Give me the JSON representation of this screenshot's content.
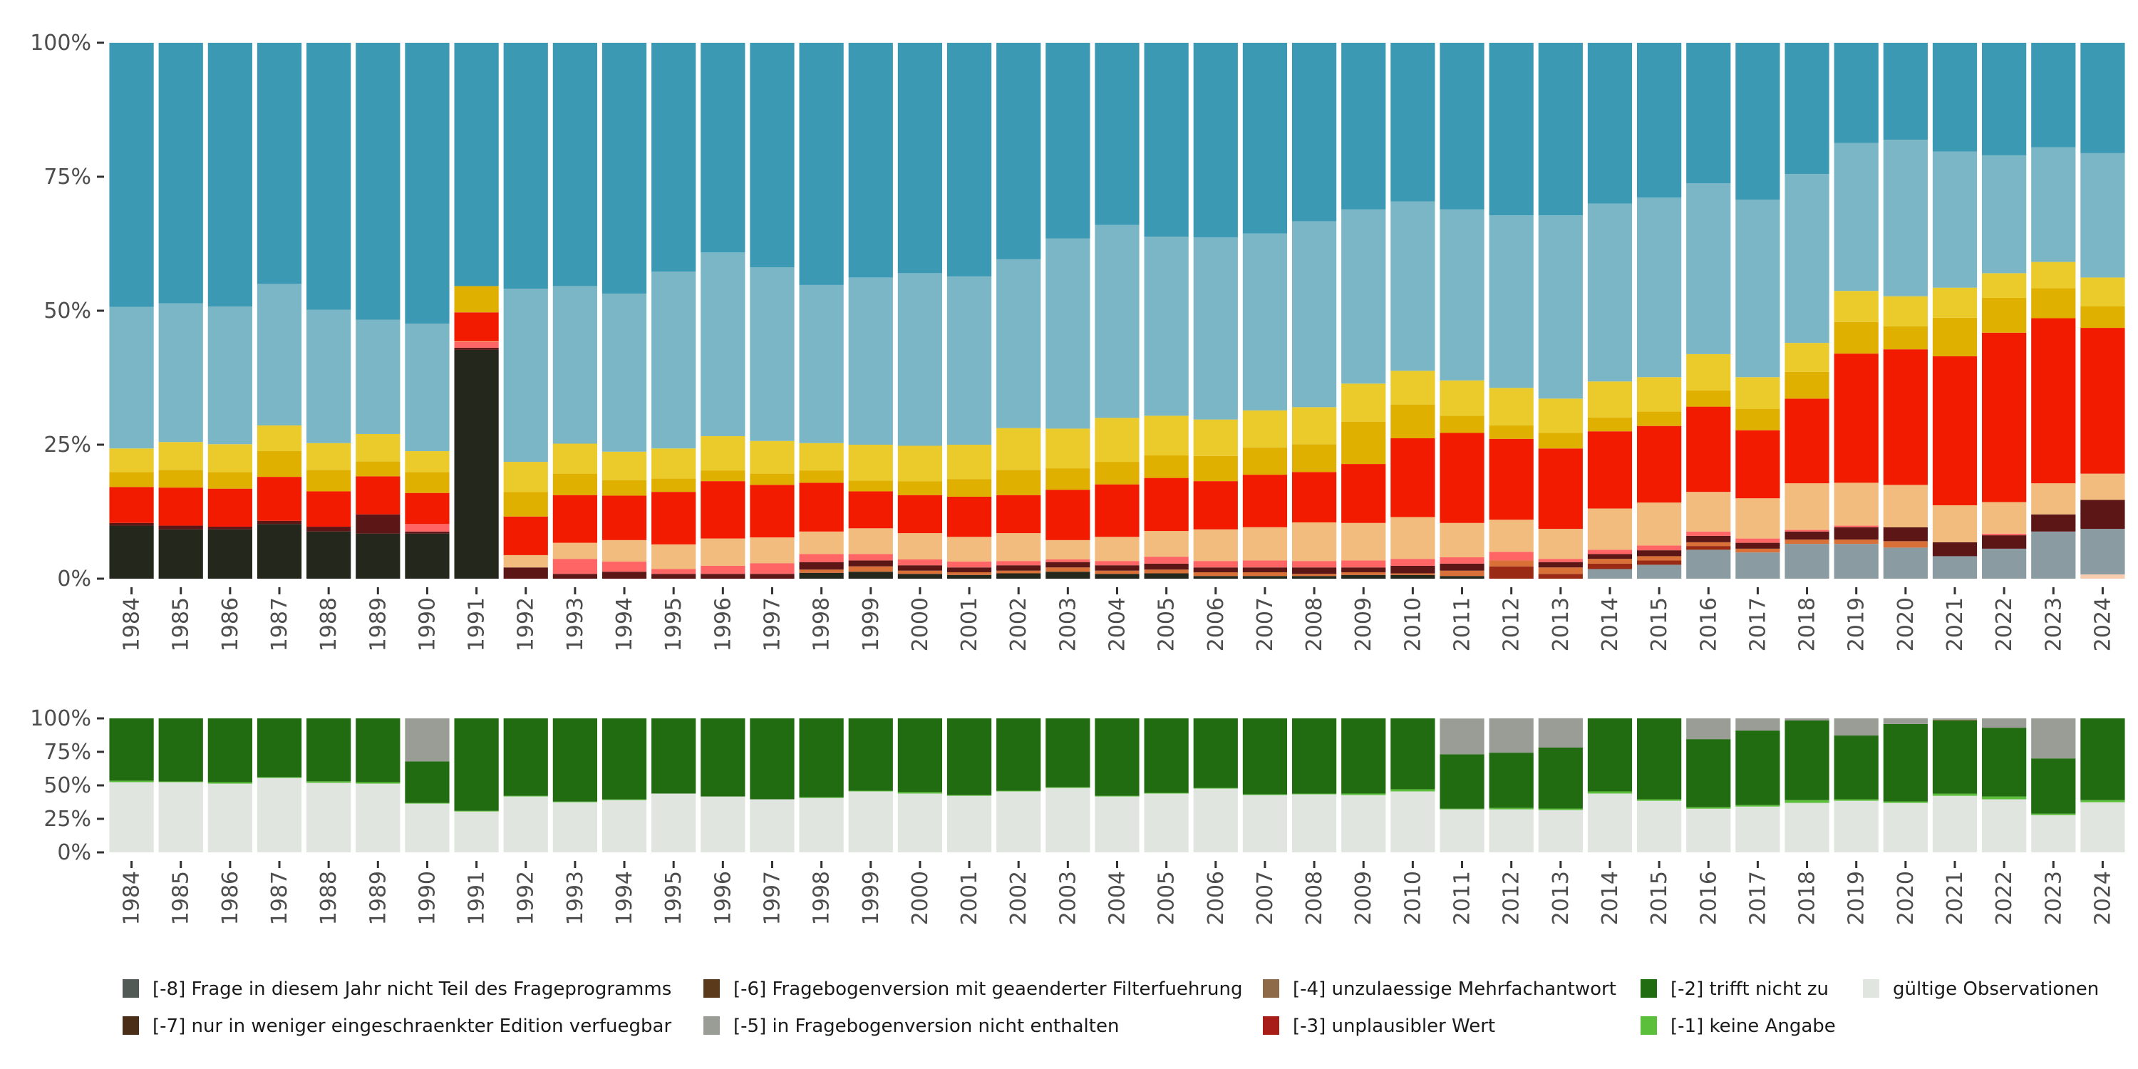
{
  "chart_data": [
    {
      "type": "bar",
      "stacked": true,
      "title": "",
      "xlabel": "",
      "ylabel": "",
      "ylim": [
        0,
        100
      ],
      "y_ticks": [
        "0%",
        "25%",
        "50%",
        "75%",
        "100%"
      ],
      "categories": [
        "1984",
        "1985",
        "1986",
        "1987",
        "1988",
        "1989",
        "1990",
        "1991",
        "1992",
        "1993",
        "1994",
        "1995",
        "1996",
        "1997",
        "1998",
        "1999",
        "2000",
        "2001",
        "2002",
        "2003",
        "2004",
        "2005",
        "2006",
        "2007",
        "2008",
        "2009",
        "2010",
        "2011",
        "2012",
        "2013",
        "2014",
        "2015",
        "2016",
        "2017",
        "2018",
        "2019",
        "2020",
        "2021",
        "2022",
        "2023",
        "2024"
      ],
      "series_colors": [
        "#f6cdb0",
        "#8a9ca2",
        "#24271b",
        "#9a2a14",
        "#d87038",
        "#5c1616",
        "#ff6565",
        "#f2bc7e",
        "#f21b00",
        "#e0b000",
        "#ebcb2b",
        "#7ab6c6",
        "#3c99b4"
      ],
      "values_by_year": [
        [
          0,
          0,
          9.9,
          0,
          0,
          0.5,
          0,
          0,
          6.7,
          2.8,
          4.4,
          26.4,
          49.3
        ],
        [
          0,
          0,
          9.2,
          0,
          0,
          0.7,
          0,
          0,
          7.1,
          3.3,
          5.2,
          25.9,
          48.6
        ],
        [
          0,
          0,
          9.2,
          0,
          0,
          0.5,
          0,
          0,
          7.1,
          3.1,
          5.2,
          25.7,
          49.2
        ],
        [
          0,
          0,
          10.2,
          0,
          0,
          0.6,
          0,
          0,
          8.2,
          4.8,
          4.8,
          26.4,
          45.0
        ],
        [
          0,
          0,
          8.8,
          0,
          0,
          0.9,
          0,
          0,
          6.6,
          4.0,
          5.0,
          24.9,
          49.8
        ],
        [
          0,
          0,
          8.4,
          0,
          0,
          3.6,
          0,
          0,
          7.1,
          2.8,
          5.1,
          21.3,
          51.7
        ],
        [
          0,
          0,
          8.4,
          0,
          0,
          0.4,
          1.4,
          0,
          5.8,
          3.9,
          3.9,
          23.8,
          52.4
        ],
        [
          0,
          0,
          42.7,
          0,
          0,
          0.4,
          1.1,
          0.1,
          5.4,
          4.9,
          0,
          0,
          45.4
        ],
        [
          0,
          0,
          0,
          0,
          0,
          2.1,
          0,
          2.3,
          7.2,
          4.6,
          5.6,
          32.3,
          45.9
        ],
        [
          0,
          0,
          0,
          0,
          0,
          0.9,
          2.8,
          3.0,
          8.9,
          4.0,
          5.6,
          29.4,
          45.4
        ],
        [
          0,
          0,
          0,
          0,
          0,
          1.3,
          1.9,
          4.0,
          8.3,
          2.9,
          5.3,
          29.5,
          46.8
        ],
        [
          0,
          0,
          0,
          0,
          0,
          0.9,
          0.9,
          4.6,
          9.8,
          2.5,
          5.6,
          33.0,
          42.7
        ],
        [
          0,
          0,
          0,
          0,
          0,
          0.9,
          1.5,
          5.1,
          10.7,
          2.0,
          6.4,
          34.3,
          39.1
        ],
        [
          0,
          0,
          0,
          0,
          0,
          0.9,
          2.0,
          4.8,
          9.8,
          2.1,
          6.1,
          32.4,
          41.9
        ],
        [
          0,
          0,
          1.1,
          0,
          0.6,
          1.4,
          1.5,
          4.2,
          9.1,
          2.3,
          5.1,
          29.5,
          45.2
        ],
        [
          0,
          0,
          1.3,
          0,
          1.0,
          1.1,
          1.2,
          4.8,
          6.9,
          2.0,
          6.7,
          31.2,
          43.8
        ],
        [
          0,
          0,
          0.9,
          0,
          0.6,
          1.0,
          1.1,
          4.9,
          7.1,
          2.6,
          6.6,
          32.2,
          43.0
        ],
        [
          0,
          0,
          0.7,
          0,
          0.5,
          0.9,
          1.1,
          4.6,
          7.5,
          3.3,
          6.4,
          31.4,
          43.6
        ],
        [
          0,
          0,
          1.0,
          0,
          0.5,
          1.0,
          0.8,
          5.2,
          7.1,
          4.7,
          7.8,
          31.5,
          40.4
        ],
        [
          0,
          0,
          1.3,
          0,
          0.8,
          1.0,
          0.5,
          3.6,
          9.4,
          4.0,
          7.4,
          35.5,
          36.5
        ],
        [
          0,
          0,
          0.9,
          0,
          0.6,
          1.0,
          0.8,
          4.5,
          9.8,
          4.2,
          8.2,
          36.0,
          34.0
        ],
        [
          0,
          0,
          1.0,
          0,
          0.7,
          1.1,
          1.3,
          4.8,
          9.9,
          4.2,
          7.4,
          33.4,
          36.2
        ],
        [
          0,
          0,
          0.5,
          0,
          0.7,
          0.9,
          1.2,
          5.9,
          9.0,
          4.7,
          6.8,
          34.0,
          36.3
        ],
        [
          0,
          0,
          0.5,
          0,
          0.7,
          0.9,
          1.3,
          6.2,
          9.8,
          5.1,
          6.9,
          33.0,
          35.6
        ],
        [
          0,
          0,
          0.5,
          0,
          0.4,
          1.2,
          1.2,
          7.2,
          9.4,
          5.2,
          6.9,
          34.7,
          33.3
        ],
        [
          0,
          0,
          0.7,
          0,
          0.5,
          0.9,
          1.3,
          7.0,
          11.0,
          7.9,
          7.1,
          32.5,
          31.1
        ],
        [
          0,
          0,
          0.7,
          0,
          0.3,
          1.4,
          1.3,
          7.8,
          14.7,
          6.3,
          6.3,
          31.6,
          29.6
        ],
        [
          0,
          0,
          0.5,
          0,
          1.0,
          1.3,
          1.2,
          6.4,
          16.8,
          3.2,
          6.6,
          31.9,
          31.1
        ],
        [
          0,
          0,
          0,
          2.3,
          1.1,
          0,
          1.6,
          6.0,
          15.1,
          2.5,
          7.0,
          32.2,
          32.2
        ],
        [
          0,
          0,
          0,
          0.9,
          1.2,
          1.0,
          0.6,
          5.6,
          15.0,
          2.9,
          6.4,
          34.2,
          32.2
        ],
        [
          0,
          1.8,
          0,
          1.0,
          0.9,
          0.9,
          0.8,
          7.7,
          14.4,
          2.6,
          6.7,
          33.2,
          30.0
        ],
        [
          0,
          2.6,
          0,
          0.8,
          0.8,
          1.1,
          0.9,
          8.0,
          14.3,
          2.7,
          6.4,
          33.5,
          28.9
        ],
        [
          0,
          5.4,
          0,
          0.7,
          0.7,
          1.2,
          0.8,
          7.4,
          15.9,
          3.0,
          6.8,
          31.9,
          26.2
        ],
        [
          0,
          4.9,
          0,
          0,
          0.7,
          1.1,
          0.8,
          7.5,
          12.7,
          4.0,
          5.9,
          33.1,
          29.3
        ],
        [
          0,
          6.5,
          0,
          0,
          0.8,
          1.5,
          0.3,
          8.7,
          15.8,
          5.0,
          5.4,
          31.5,
          24.5
        ],
        [
          0,
          6.5,
          0,
          0,
          0.8,
          2.3,
          0.3,
          8.0,
          24.1,
          5.9,
          5.8,
          27.6,
          18.7
        ],
        [
          0,
          5.8,
          0,
          0,
          1.2,
          2.6,
          0,
          7.9,
          25.3,
          4.3,
          5.6,
          29.2,
          18.1
        ],
        [
          0,
          4.2,
          0,
          0,
          0,
          2.6,
          0,
          6.9,
          27.8,
          7.2,
          5.6,
          25.4,
          20.3
        ],
        [
          0,
          5.6,
          0,
          0,
          0,
          2.5,
          0.3,
          5.9,
          31.6,
          6.5,
          4.6,
          22.0,
          21.0
        ],
        [
          0,
          8.8,
          0,
          0,
          0,
          3.2,
          0,
          5.8,
          30.8,
          5.6,
          4.9,
          21.4,
          19.5
        ],
        [
          0.8,
          8.5,
          0,
          0,
          0,
          5.4,
          0,
          4.9,
          27.2,
          4.0,
          5.4,
          23.2,
          20.6
        ]
      ]
    },
    {
      "type": "bar",
      "stacked": true,
      "ylim": [
        0,
        100
      ],
      "y_ticks": [
        "0%",
        "25%",
        "50%",
        "75%",
        "100%"
      ],
      "categories": [
        "1984",
        "1985",
        "1986",
        "1987",
        "1988",
        "1989",
        "1990",
        "1991",
        "1992",
        "1993",
        "1994",
        "1995",
        "1996",
        "1997",
        "1998",
        "1999",
        "2000",
        "2001",
        "2002",
        "2003",
        "2004",
        "2005",
        "2006",
        "2007",
        "2008",
        "2009",
        "2010",
        "2011",
        "2012",
        "2013",
        "2014",
        "2015",
        "2016",
        "2017",
        "2018",
        "2019",
        "2020",
        "2021",
        "2022",
        "2023",
        "2024"
      ],
      "series": [
        {
          "name": "gültige Observationen",
          "color": "#e1e5e0",
          "values": [
            52.4,
            52.4,
            51.3,
            55.6,
            51.9,
            51.3,
            36.4,
            30.5,
            41.7,
            37.4,
            39.0,
            43.9,
            41.7,
            39.6,
            40.6,
            45.5,
            43.9,
            42.2,
            45.5,
            48.1,
            41.7,
            43.9,
            47.6,
            42.8,
            43.3,
            42.8,
            45.5,
            32.1,
            32.1,
            31.6,
            43.9,
            38.5,
            32.6,
            34.2,
            36.9,
            38.5,
            36.9,
            42.2,
            39.6,
            27.8,
            37.4
          ]
        },
        {
          "name": "[-1] keine Angabe",
          "color": "#5cbf3c",
          "values": [
            1.1,
            0.5,
            1.1,
            0.5,
            1.1,
            1.1,
            0.5,
            0.5,
            0.5,
            0.5,
            0.5,
            0,
            0,
            0,
            0.5,
            0.5,
            1.1,
            0.5,
            0.5,
            0.5,
            0.5,
            0.5,
            0.5,
            0.5,
            0.5,
            1.1,
            1.6,
            0.5,
            1.1,
            1.1,
            1.6,
            1.1,
            1.1,
            1.1,
            2.1,
            1.1,
            1.1,
            1.6,
            2.1,
            1.1,
            1.6
          ]
        },
        {
          "name": "[-2] trifft nicht zu",
          "color": "#216b10",
          "values": [
            46.5,
            47.1,
            47.6,
            43.9,
            47.0,
            47.6,
            31.0,
            69.0,
            57.8,
            62.1,
            60.5,
            56.1,
            58.3,
            60.4,
            58.9,
            54.0,
            55.0,
            57.3,
            54.0,
            51.4,
            57.8,
            55.6,
            51.9,
            56.7,
            56.2,
            56.1,
            52.9,
            40.6,
            41.2,
            45.5,
            54.5,
            60.4,
            50.8,
            55.6,
            59.4,
            47.6,
            57.8,
            54.7,
            51.3,
            41.2,
            61.0
          ]
        },
        {
          "name": "[-4] unzulaessige Mehrfachantwort",
          "color": "#8f6a48",
          "values": [
            0,
            0,
            0,
            0,
            0,
            0,
            0,
            0,
            0,
            0,
            0,
            0,
            0,
            0,
            0,
            0,
            0,
            0,
            0,
            0,
            0,
            0,
            0,
            0,
            0,
            0,
            0,
            0,
            0,
            0,
            0,
            0,
            0,
            0,
            0,
            0,
            0,
            0.5,
            0,
            0,
            0
          ]
        },
        {
          "name": "[-5] in Fragebogenversion nicht enthalten",
          "color": "#9a9d96",
          "values": [
            0,
            0,
            0,
            0,
            0,
            0,
            32.1,
            0,
            0,
            0,
            0,
            0,
            0,
            0,
            0,
            0,
            0,
            0,
            0,
            0,
            0,
            0,
            0,
            0,
            0,
            0,
            0,
            26.7,
            25.6,
            21.9,
            0,
            0,
            15.5,
            9.1,
            1.6,
            12.8,
            4.3,
            1.0,
            7.0,
            29.9,
            0
          ]
        }
      ]
    }
  ],
  "legend": {
    "position": "bottom",
    "items": [
      {
        "label": "[-8] Frage in diesem Jahr nicht Teil des Frageprogramms",
        "color": "#525a56"
      },
      {
        "label": "[-7] nur in weniger eingeschraenkter Edition verfuegbar",
        "color": "#4a2e18"
      },
      {
        "label": "[-6] Fragebogenversion mit geaenderter Filterfuehrung",
        "color": "#5a3a1a"
      },
      {
        "label": "[-5] in Fragebogenversion nicht enthalten",
        "color": "#9a9d96"
      },
      {
        "label": "[-4] unzulaessige Mehrfachantwort",
        "color": "#8f6a48"
      },
      {
        "label": "[-3] unplausibler Wert",
        "color": "#a81d18"
      },
      {
        "label": "[-2] trifft nicht zu",
        "color": "#216b10"
      },
      {
        "label": "[-1] keine Angabe",
        "color": "#5cbf3c"
      },
      {
        "label": "gültige Observationen",
        "color": "#e1e5e0"
      }
    ]
  }
}
